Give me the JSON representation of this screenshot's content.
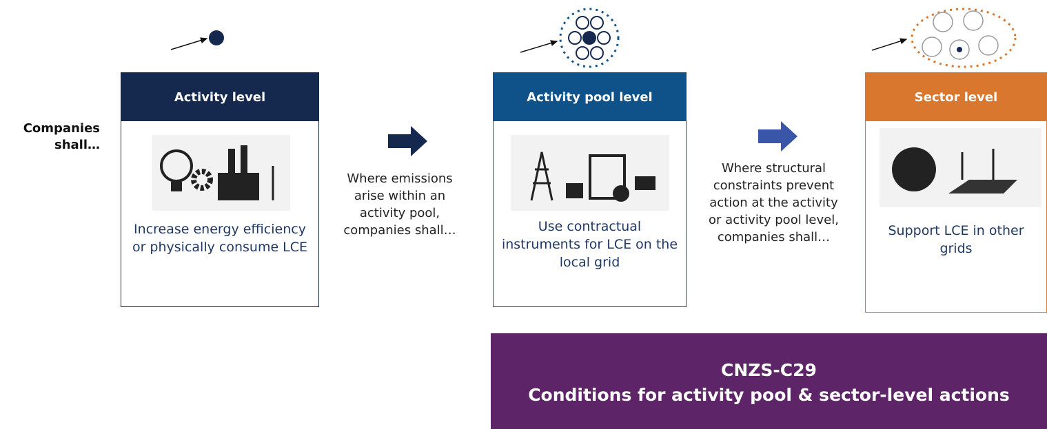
{
  "side_label": "Companies shall…",
  "levels": [
    {
      "title": "Activity level",
      "description": "Increase energy efficiency or physically consume LCE"
    },
    {
      "title": "Activity pool level",
      "description": "Use contractual instruments for LCE on the local grid"
    },
    {
      "title": "Sector level",
      "description": "Support LCE in other grids"
    }
  ],
  "transitions": [
    "Where emissions arise within an activity pool, companies shall…",
    "Where structural constraints prevent action at the activity or activity pool level, companies shall…"
  ],
  "footer": {
    "code": "CNZS-C29",
    "title": "Conditions for activity pool & sector-level actions"
  }
}
